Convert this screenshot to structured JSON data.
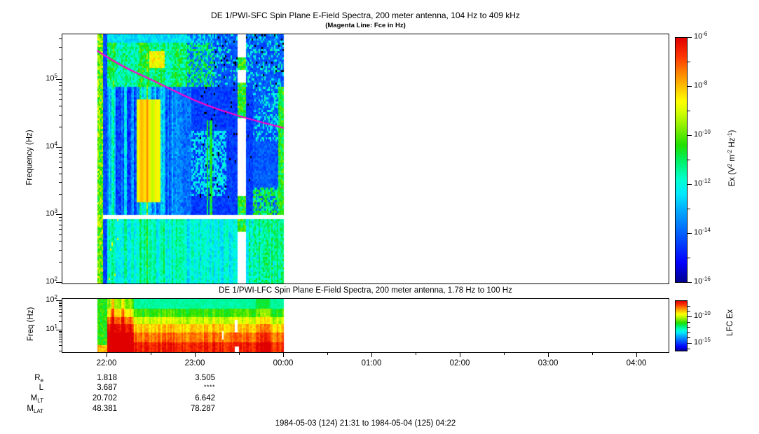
{
  "caption": "1984-05-03 (124) 21:31 to 1984-05-04 (125) 04:22",
  "colors": {
    "magenta_line": "#ff00cc",
    "frame": "#000000",
    "background": "#ffffff"
  },
  "colormap": [
    [
      0.0,
      "#00008f"
    ],
    [
      0.08,
      "#0000ff"
    ],
    [
      0.2,
      "#0060ff"
    ],
    [
      0.3,
      "#00b0ff"
    ],
    [
      0.36,
      "#00e8ff"
    ],
    [
      0.42,
      "#00ffd0"
    ],
    [
      0.5,
      "#00f060"
    ],
    [
      0.56,
      "#20e000"
    ],
    [
      0.64,
      "#90f000"
    ],
    [
      0.7,
      "#d8ff00"
    ],
    [
      0.74,
      "#ffff00"
    ],
    [
      0.8,
      "#ffc000"
    ],
    [
      0.86,
      "#ff8000"
    ],
    [
      0.92,
      "#ff3800"
    ],
    [
      1.0,
      "#e00000"
    ]
  ],
  "chart_data": [
    {
      "type": "heatmap",
      "instrument": "DE 1/PWI-SFC",
      "title": "DE 1/PWI-SFC  Spin Plane E-Field Spectra, 200 meter antenna, 104 Hz to 409 kHz",
      "subtitle": "(Magenta Line: Fce in Hz)",
      "ylabel": "Frequency (Hz)",
      "yscale": "log",
      "ylim_hz": [
        100,
        409000
      ],
      "ytick_labels": [
        "10^2",
        "10^3",
        "10^4",
        "10^5"
      ],
      "ytick_exponents": [
        2,
        3,
        4,
        5
      ],
      "xlim": [
        "1984-05-03 21:31",
        "1984-05-04 04:22"
      ],
      "xtick_labels": [
        "22:00",
        "23:00",
        "00:00",
        "01:00",
        "02:00",
        "03:00",
        "04:00"
      ],
      "xtick_hours": [
        22,
        23,
        24,
        25,
        26,
        27,
        28
      ],
      "x_minor_hours": [
        22.5,
        23.5,
        24.5,
        25.5,
        26.5,
        27.5
      ],
      "grid": false,
      "data_coverage_hours": [
        21.9,
        24.0
      ],
      "colorbar": {
        "label": "Ex (V^2 m^-2 Hz^-1)",
        "tick_labels": [
          "10^-6",
          "10^-8",
          "10^-10",
          "10^-12",
          "10^-14",
          "10^-16"
        ],
        "tick_exponents": [
          -6,
          -8,
          -10,
          -12,
          -14,
          -16
        ],
        "minor_exponents": [
          -7,
          -9,
          -11,
          -13,
          -15
        ],
        "range": [
          1e-16,
          1e-06
        ]
      },
      "fce_line": {
        "name": "Fce",
        "color": "#ff00cc",
        "points": [
          {
            "hour": 21.9,
            "hz": 260000
          },
          {
            "hour": 22.15,
            "hz": 160000
          },
          {
            "hour": 22.5,
            "hz": 100000
          },
          {
            "hour": 23.0,
            "hz": 47000
          },
          {
            "hour": 23.5,
            "hz": 28000
          },
          {
            "hour": 24.0,
            "hz": 19000
          }
        ]
      },
      "gaps": {
        "horizontal_logf": [
          2.93,
          3.005
        ],
        "vertical_hours": [
          23.47,
          23.565
        ],
        "vertical_keep_logf": [
          [
            2.75,
            3.3
          ],
          [
            4.45,
            4.95
          ],
          [
            5.15,
            5.35
          ]
        ]
      },
      "features": [
        "Spectrogram data only from ~21:54 to 00:00; panel white/blank from 00:00 to 04:22",
        "Bright green full-height column at data start near 21:54",
        "Intense broadband burst 22:00-22:50 with yellow/orange core near 1.5-50 kHz around 22:25-22:35",
        "Patchy green/cyan continuum band above ~80 kHz strongest before ~23:15",
        "Deep blue low-intensity background 1-80 kHz after 22:55 with scattered black pixels 23:05-23:50",
        "Cyan band below ~850 Hz throughout the coverage interval",
        "Thin horizontal white data gap near 850-1000 Hz across entire coverage",
        "Dashed white vertical data dropout near 23:29",
        "Renewed cyan/green activity 23:40-00:00",
        "Magenta Fce line falls from ~260 kHz at 21:54 to ~19 kHz at 00:00"
      ]
    },
    {
      "type": "heatmap",
      "instrument": "DE 1/PWI-LFC",
      "title": "DE 1/PWI-LFC  Spin Plane E-Field Spectra, 200 meter antenna, 1.78 Hz to 100 Hz",
      "ylabel": "Freq (Hz)",
      "yscale": "log",
      "ylim_hz": [
        1.78,
        100
      ],
      "ytick_labels": [
        "10^1",
        "10^2"
      ],
      "ytick_exponents": [
        1,
        2
      ],
      "grid": false,
      "data_coverage_hours": [
        21.9,
        24.0
      ],
      "colorbar": {
        "label": "LFC Ex",
        "tick_labels": [
          "10^-10",
          "10^-15"
        ],
        "tick_exponents": [
          -10,
          -15
        ],
        "minor_exponents": [
          -8,
          -9,
          -11,
          -12,
          -13,
          -14,
          -16
        ]
      },
      "white_gaps": [
        {
          "hours": [
            23.44,
            23.47
          ],
          "logf": [
            0.95,
            1.35
          ]
        },
        {
          "hours": [
            23.3,
            23.32
          ],
          "logf": [
            0.72,
            1.0
          ]
        },
        {
          "hours": [
            23.45,
            23.49
          ],
          "logf": [
            0.25,
            0.45
          ]
        }
      ],
      "features": [
        "Layered banded spectrum: intensity rises toward low frequency (cyan near 100 Hz to red below ~5 Hz)",
        "Green columns at data start 21:54-22:01",
        "Intense red burst reaching all frequencies 22:01-22:18",
        "Steady banded spectrum with vertical striping 22:20-00:00",
        "Small white dropouts near 23:18-23:29",
        "No data after 00:00"
      ]
    }
  ],
  "ephemeris": {
    "column_times": [
      "22:00",
      "23:00"
    ],
    "rows": [
      {
        "label": "R_e",
        "values": [
          "1.818",
          "3.505"
        ]
      },
      {
        "label": "L",
        "values": [
          "3.687",
          "****"
        ]
      },
      {
        "label": "M_LT",
        "values": [
          "20.702",
          "6.642"
        ]
      },
      {
        "label": "M_LAT",
        "values": [
          "48.381",
          "78.287"
        ]
      }
    ]
  }
}
